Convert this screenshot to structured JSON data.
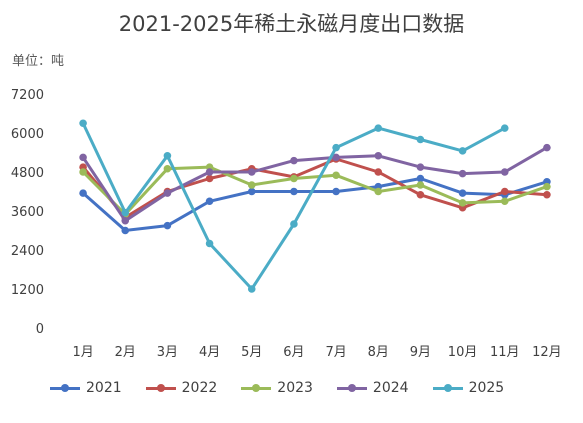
{
  "chart_data": {
    "type": "line",
    "title": "2021-2025年稀土永磁月度出口数据",
    "unit": "单位：吨",
    "categories": [
      "1月",
      "2月",
      "3月",
      "4月",
      "5月",
      "6月",
      "7月",
      "8月",
      "9月",
      "10月",
      "11月",
      "12月"
    ],
    "ylim": [
      0,
      7200
    ],
    "yticks": [
      0,
      1200,
      2400,
      3600,
      4800,
      6000,
      7200
    ],
    "legend_position": "bottom",
    "series": [
      {
        "name": "2021",
        "color": "#4472C4",
        "values": [
          4150,
          3000,
          3150,
          3900,
          4200,
          4200,
          4200,
          4350,
          4600,
          4150,
          4100,
          4500
        ]
      },
      {
        "name": "2022",
        "color": "#C0504D",
        "values": [
          4950,
          3400,
          4200,
          4600,
          4900,
          4650,
          5200,
          4800,
          4100,
          3700,
          4200,
          4100
        ]
      },
      {
        "name": "2023",
        "color": "#9BBB59",
        "values": [
          4800,
          3500,
          4900,
          4950,
          4400,
          4600,
          4700,
          4200,
          4400,
          3850,
          3900,
          4350
        ]
      },
      {
        "name": "2024",
        "color": "#8064A2",
        "values": [
          5250,
          3300,
          4150,
          4800,
          4800,
          5150,
          5250,
          5300,
          4950,
          4750,
          4800,
          5550
        ]
      },
      {
        "name": "2025",
        "color": "#4BACC6",
        "values": [
          6300,
          3550,
          5300,
          2600,
          1200,
          3200,
          5550,
          6150,
          5800,
          5450,
          6150,
          null
        ]
      }
    ]
  }
}
